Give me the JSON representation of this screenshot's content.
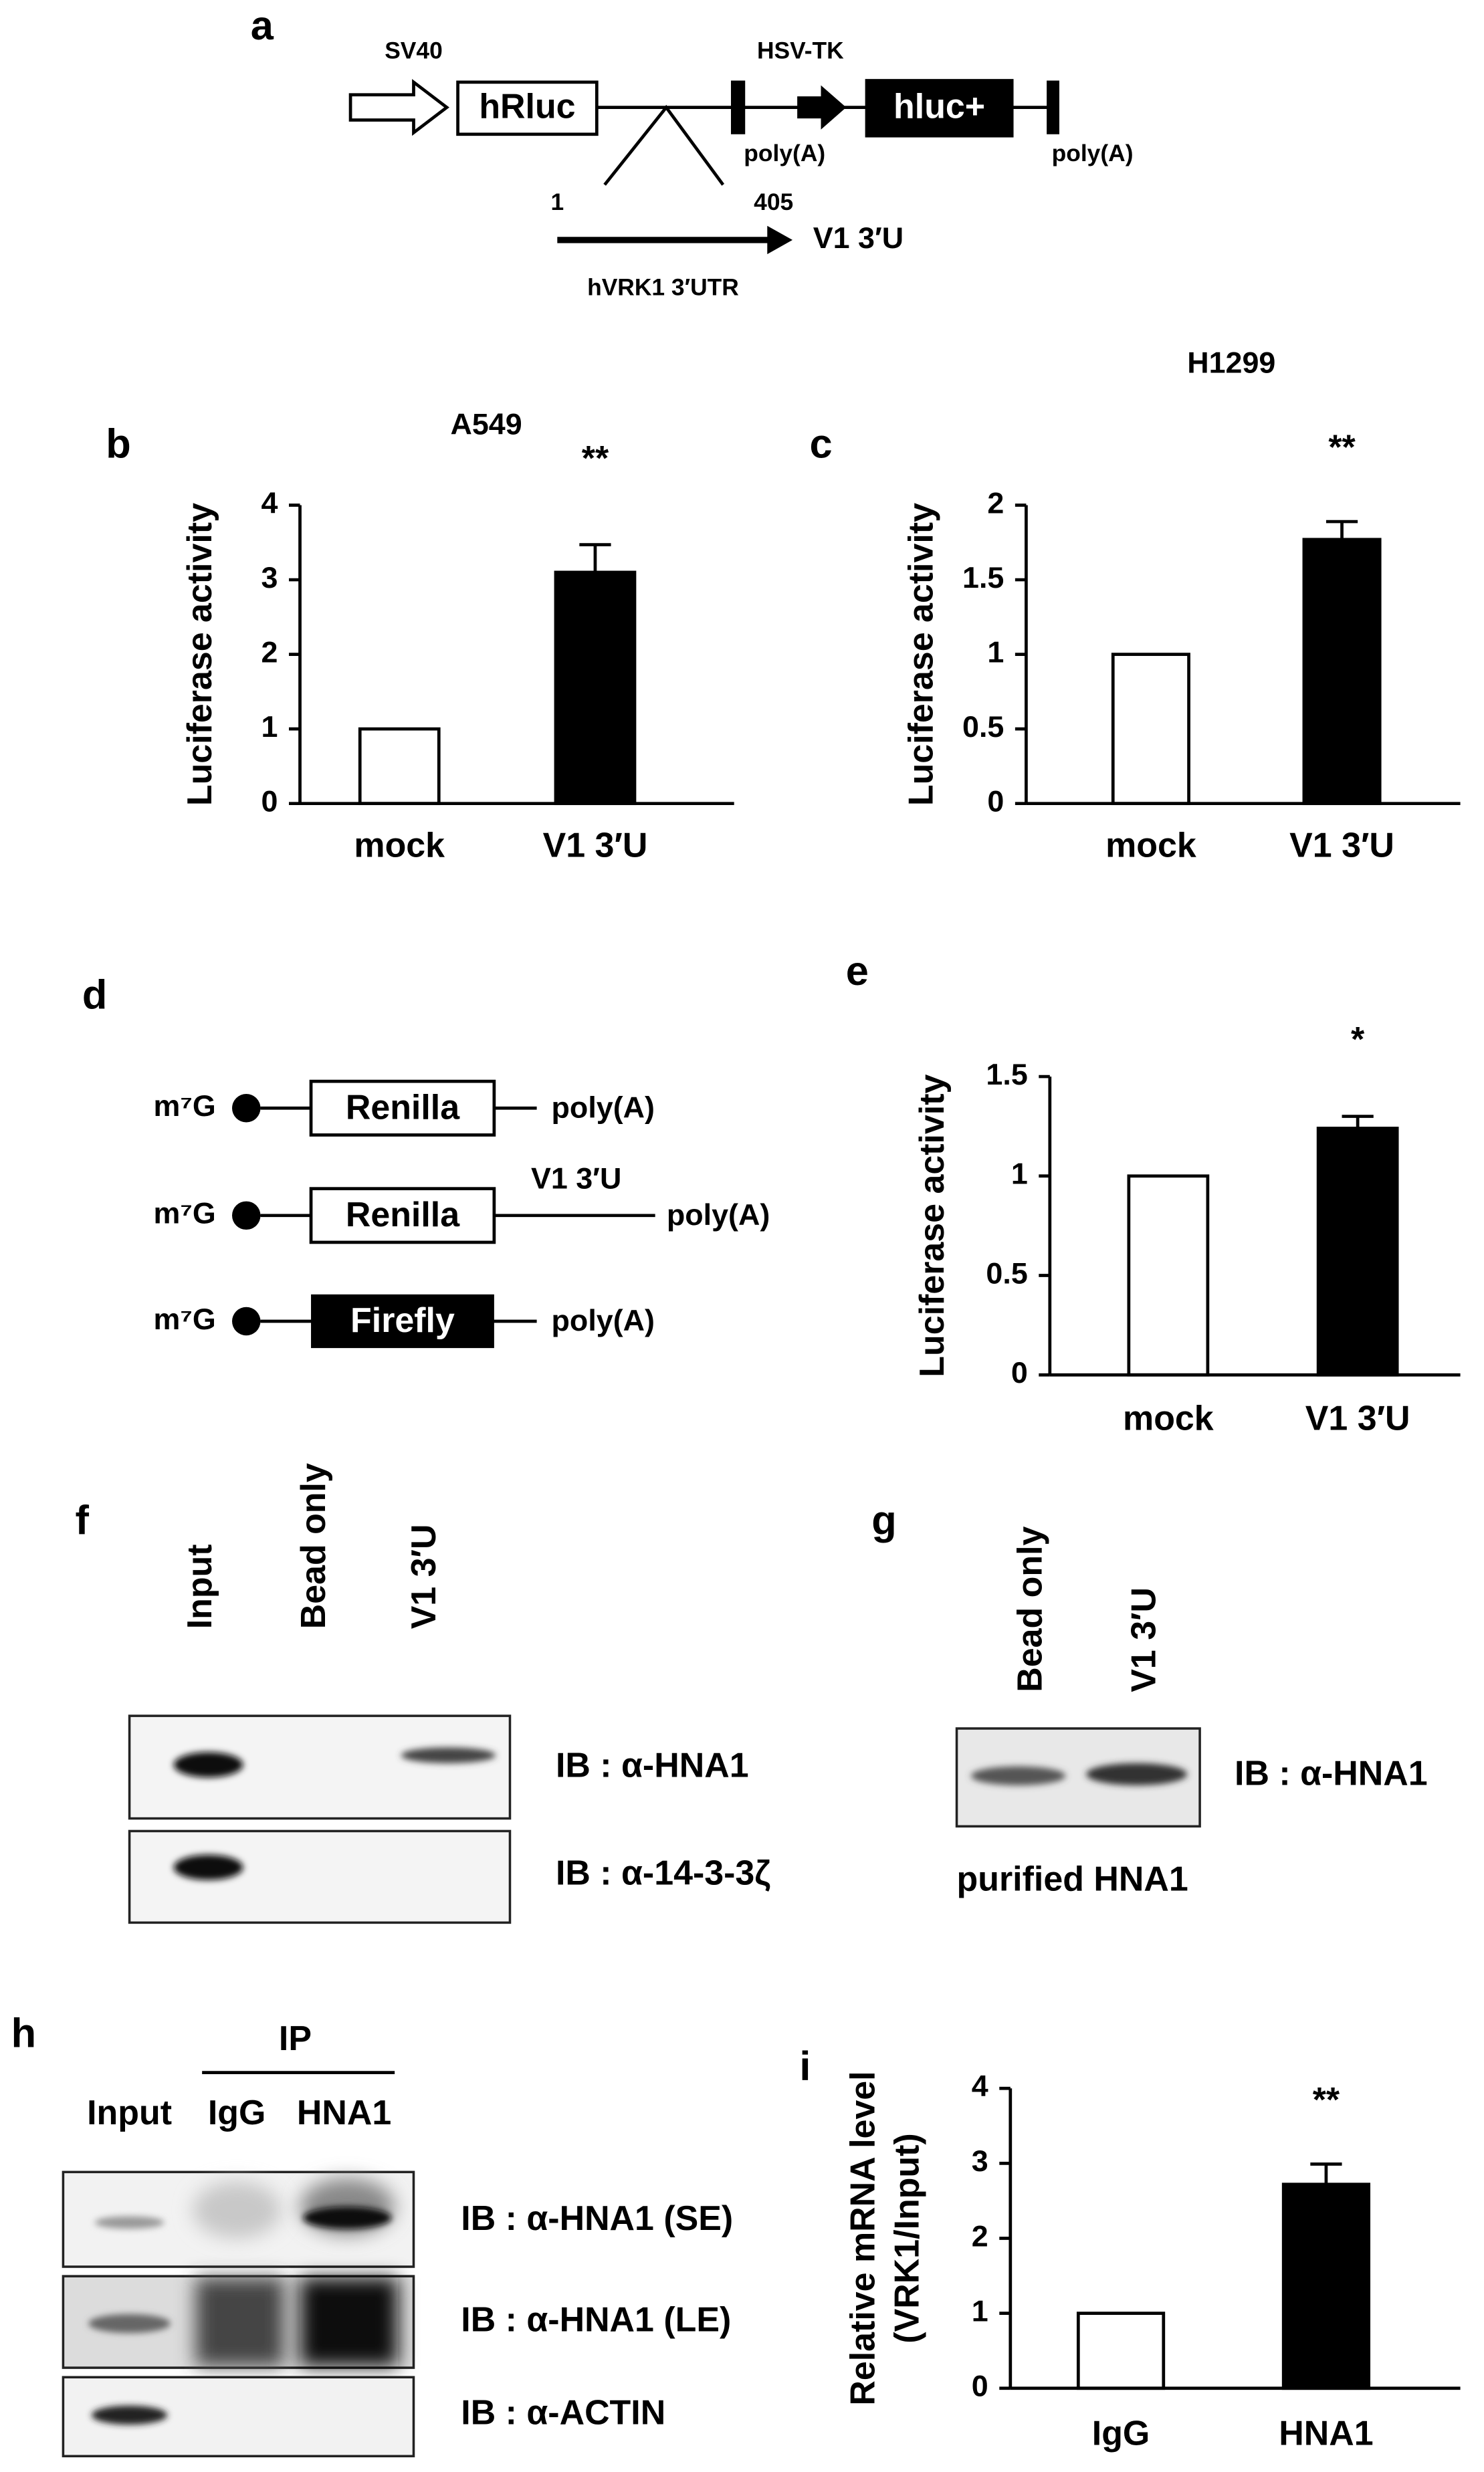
{
  "chart_data": [
    {
      "type": "bar",
      "panel": "b",
      "title": "A549",
      "y_label": "Luciferase activity",
      "categories": [
        "mock",
        "V1 3′U"
      ],
      "values": [
        1,
        3.1
      ],
      "errors": [
        null,
        0.37
      ],
      "colors": [
        "#ffffff",
        "#000000"
      ],
      "annotation": "**",
      "ylim": [
        0,
        4
      ],
      "yticks": [
        0,
        1,
        2,
        3,
        4
      ]
    },
    {
      "type": "bar",
      "panel": "c",
      "title": "H1299",
      "y_label": "Luciferase activity",
      "categories": [
        "mock",
        "V1 3′U"
      ],
      "values": [
        1,
        1.77
      ],
      "errors": [
        null,
        0.12
      ],
      "colors": [
        "#ffffff",
        "#000000"
      ],
      "annotation": "**",
      "ylim": [
        0,
        2
      ],
      "yticks": [
        0,
        0.5,
        1,
        1.5,
        2
      ]
    },
    {
      "type": "bar",
      "panel": "e",
      "y_label": "Luciferase activity",
      "categories": [
        "mock",
        "V1 3′U"
      ],
      "values": [
        1,
        1.24
      ],
      "errors": [
        null,
        0.06
      ],
      "colors": [
        "#ffffff",
        "#000000"
      ],
      "annotation": "*",
      "ylim": [
        0,
        1.5
      ],
      "yticks": [
        0,
        0.5,
        1,
        1.5
      ]
    },
    {
      "type": "bar",
      "panel": "i",
      "y_label": [
        "Relative mRNA level",
        "(VRK1/Input)"
      ],
      "categories": [
        "IgG",
        "HNA1"
      ],
      "values": [
        1,
        2.72
      ],
      "errors": [
        null,
        0.27
      ],
      "colors": [
        "#ffffff",
        "#000000"
      ],
      "annotation": "**",
      "ylim": [
        0,
        4
      ],
      "yticks": [
        0,
        1,
        2,
        3,
        4
      ]
    }
  ],
  "panel_a": {
    "label": "a",
    "promoter": "SV40",
    "gene1": "hRluc",
    "promoter2": "HSV-TK",
    "gene2": "hluc+",
    "polyA_1": "poly(A)",
    "polyA_2": "poly(A)",
    "start": "1",
    "end": "405",
    "insert": "V1 3′U",
    "insert_name": "hVRK1 3′UTR"
  },
  "panel_d": {
    "label": "d",
    "constructs": [
      {
        "cap": "m⁷G",
        "gene": "Renilla",
        "tail": "poly(A)"
      },
      {
        "cap": "m⁷G",
        "gene": "Renilla",
        "insert": "V1 3′U",
        "tail": "poly(A)"
      },
      {
        "cap": "m⁷G",
        "gene": "Firefly",
        "tail": "poly(A)"
      }
    ]
  },
  "panel_f": {
    "label": "f",
    "lanes": [
      "Input",
      "Bead only",
      "V1 3′U"
    ],
    "blots": [
      "IB : α-HNA1",
      "IB : α-14-3-3ζ"
    ]
  },
  "panel_g": {
    "label": "g",
    "lanes": [
      "Bead only",
      "V1 3′U"
    ],
    "blots": [
      "IB : α-HNA1"
    ],
    "caption": "purified HNA1"
  },
  "panel_h": {
    "label": "h",
    "group": "IP",
    "lanes": [
      "Input",
      "IgG",
      "HNA1"
    ],
    "blots": [
      "IB : α-HNA1 (SE)",
      "IB : α-HNA1 (LE)",
      "IB : α-ACTIN"
    ]
  }
}
